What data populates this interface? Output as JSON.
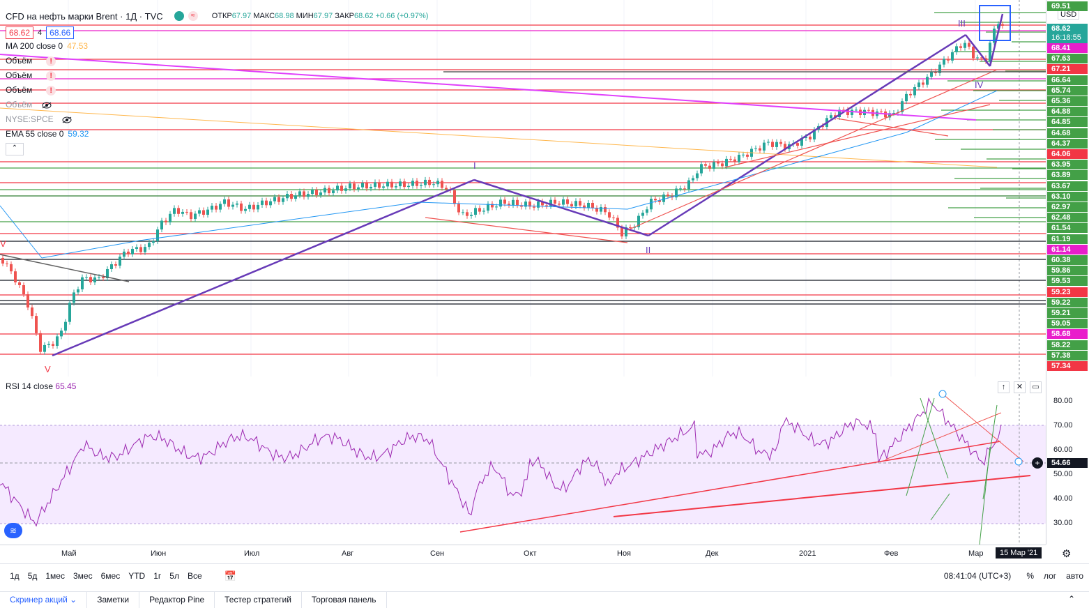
{
  "header": {
    "title": "CFD на нефть марки Brent · 1Д · TVC",
    "open_label": "ОТКР",
    "open": "67.97",
    "high_label": "МАКС",
    "high": "68.98",
    "low_label": "МИН",
    "low": "67.97",
    "close_label": "ЗАКР",
    "close": "68.62",
    "change": "+0.66 (+0.97%)",
    "sell_price": "68.62",
    "spread": "4",
    "buy_price": "68.66"
  },
  "legend": {
    "ma200": {
      "label": "MA 200 close 0",
      "value": "47.53"
    },
    "volume_rows": [
      "Объём",
      "Объём",
      "Объём",
      "Объём"
    ],
    "spce": "NYSE:SPCE",
    "ema55": {
      "label": "EMA 55 close 0",
      "value": "59.32"
    }
  },
  "rsi": {
    "label": "RSI 14 close",
    "value": "65.45",
    "current_tag": "54.66",
    "axis": [
      "80.00",
      "70.00",
      "60.00",
      "50.00",
      "40.00",
      "30.00"
    ]
  },
  "price_scale": {
    "currency": "USD",
    "top_partial": "69.51",
    "current": "68.62",
    "countdown": "16:18:55",
    "labels": [
      {
        "v": "68.41",
        "bg": "#e91ecb"
      },
      {
        "v": "67.63",
        "bg": "#43a047"
      },
      {
        "v": "67.21",
        "bg": "#f23645"
      },
      {
        "v": "66.64",
        "bg": "#43a047"
      },
      {
        "v": "65.74",
        "bg": "#43a047"
      },
      {
        "v": "65.36",
        "bg": "#43a047"
      },
      {
        "v": "64.88",
        "bg": "#43a047"
      },
      {
        "v": "64.85",
        "bg": "#43a047"
      },
      {
        "v": "64.68",
        "bg": "#43a047"
      },
      {
        "v": "64.37",
        "bg": "#43a047"
      },
      {
        "v": "64.06",
        "bg": "#f23645"
      },
      {
        "v": "63.95",
        "bg": "#43a047"
      },
      {
        "v": "63.89",
        "bg": "#43a047"
      },
      {
        "v": "63.67",
        "bg": "#43a047"
      },
      {
        "v": "63.10",
        "bg": "#43a047"
      },
      {
        "v": "62.97",
        "bg": "#43a047"
      },
      {
        "v": "62.48",
        "bg": "#43a047"
      },
      {
        "v": "61.54",
        "bg": "#43a047"
      },
      {
        "v": "61.19",
        "bg": "#43a047"
      },
      {
        "v": "61.14",
        "bg": "#e91ecb"
      },
      {
        "v": "60.38",
        "bg": "#43a047"
      },
      {
        "v": "59.86",
        "bg": "#43a047"
      },
      {
        "v": "59.53",
        "bg": "#43a047"
      },
      {
        "v": "59.23",
        "bg": "#f23645"
      },
      {
        "v": "59.22",
        "bg": "#43a047"
      },
      {
        "v": "59.21",
        "bg": "#43a047"
      },
      {
        "v": "59.05",
        "bg": "#43a047"
      },
      {
        "v": "58.68",
        "bg": "#e91ecb"
      },
      {
        "v": "58.22",
        "bg": "#43a047"
      },
      {
        "v": "57.38",
        "bg": "#43a047"
      },
      {
        "v": "57.34",
        "bg": "#f23645"
      }
    ]
  },
  "time_axis": [
    "Май",
    "Июн",
    "Июл",
    "Авг",
    "Сен",
    "Окт",
    "Ноя",
    "Дек",
    "2021",
    "Фев",
    "Мар"
  ],
  "time_cursor": "15 Мар '21",
  "wave_labels": {
    "v_left": "V",
    "v_bottom": "V",
    "i_top": "I",
    "ii": "II",
    "iii": "III",
    "iv": "IV"
  },
  "bottom_bar": {
    "ranges": [
      "1д",
      "5д",
      "1мес",
      "3мес",
      "6мес",
      "YTD",
      "1г",
      "5л",
      "Все"
    ],
    "clock": "08:41:04 (UTC+3)",
    "percent": "%",
    "log": "лог",
    "auto": "авто"
  },
  "tabs": [
    "Скринер акций",
    "Заметки",
    "Редактор Pine",
    "Тестер стратегий",
    "Торговая панель"
  ]
}
